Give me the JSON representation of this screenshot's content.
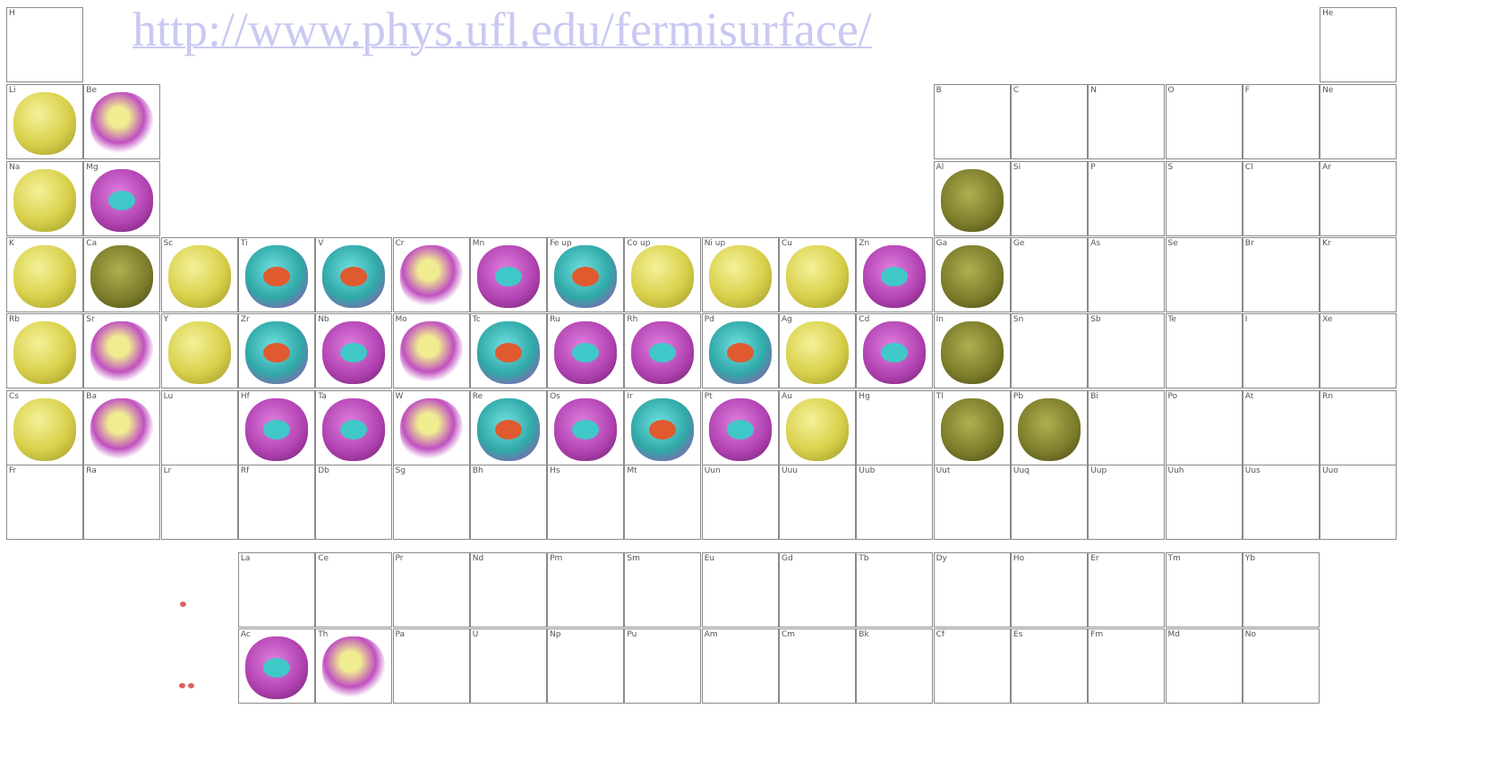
{
  "url": "http://www.phys.ufl.edu/fermisurface/",
  "table": {
    "rows": [
      [
        "H",
        null,
        null,
        null,
        null,
        null,
        null,
        null,
        null,
        null,
        null,
        null,
        null,
        null,
        null,
        null,
        null,
        "He"
      ],
      [
        "Li",
        "Be",
        null,
        null,
        null,
        null,
        null,
        null,
        null,
        null,
        null,
        null,
        "B",
        "C",
        "N",
        "O",
        "F",
        "Ne"
      ],
      [
        "Na",
        "Mg",
        null,
        null,
        null,
        null,
        null,
        null,
        null,
        null,
        null,
        null,
        "Al",
        "Si",
        "P",
        "S",
        "Cl",
        "Ar"
      ],
      [
        "K",
        "Ca",
        "Sc",
        "Ti",
        "V",
        "Cr",
        "Mn",
        "Fe up",
        "Co up",
        "Ni up",
        "Cu",
        "Zn",
        "Ga",
        "Ge",
        "As",
        "Se",
        "Br",
        "Kr"
      ],
      [
        "Rb",
        "Sr",
        "Y",
        "Zr",
        "Nb",
        "Mo",
        "Tc",
        "Ru",
        "Rh",
        "Pd",
        "Ag",
        "Cd",
        "In",
        "Sn",
        "Sb",
        "Te",
        "I",
        "Xe"
      ],
      [
        "Cs",
        "Ba",
        "Lu",
        "Hf",
        "Ta",
        "W",
        "Re",
        "Os",
        "Ir",
        "Pt",
        "Au",
        "Hg",
        "Tl",
        "Pb",
        "Bi",
        "Po",
        "At",
        "Rn"
      ],
      [
        "Fr",
        "Ra",
        "Lr",
        "Rf",
        "Db",
        "Sg",
        "Bh",
        "Hs",
        "Mt",
        "Uun",
        "Uuu",
        "Uub",
        "Uut",
        "Uuq",
        "Uup",
        "Uuh",
        "Uus",
        "Uuo"
      ]
    ]
  },
  "f_block": {
    "rows": [
      [
        "La",
        "Ce",
        "Pr",
        "Nd",
        "Pm",
        "Sm",
        "Eu",
        "Gd",
        "Tb",
        "Dy",
        "Ho",
        "Er",
        "Tm",
        "Yb"
      ],
      [
        "Ac",
        "Th",
        "Pa",
        "U",
        "Np",
        "Pu",
        "Am",
        "Cm",
        "Bk",
        "Cf",
        "Es",
        "Fm",
        "Md",
        "No"
      ]
    ]
  }
}
